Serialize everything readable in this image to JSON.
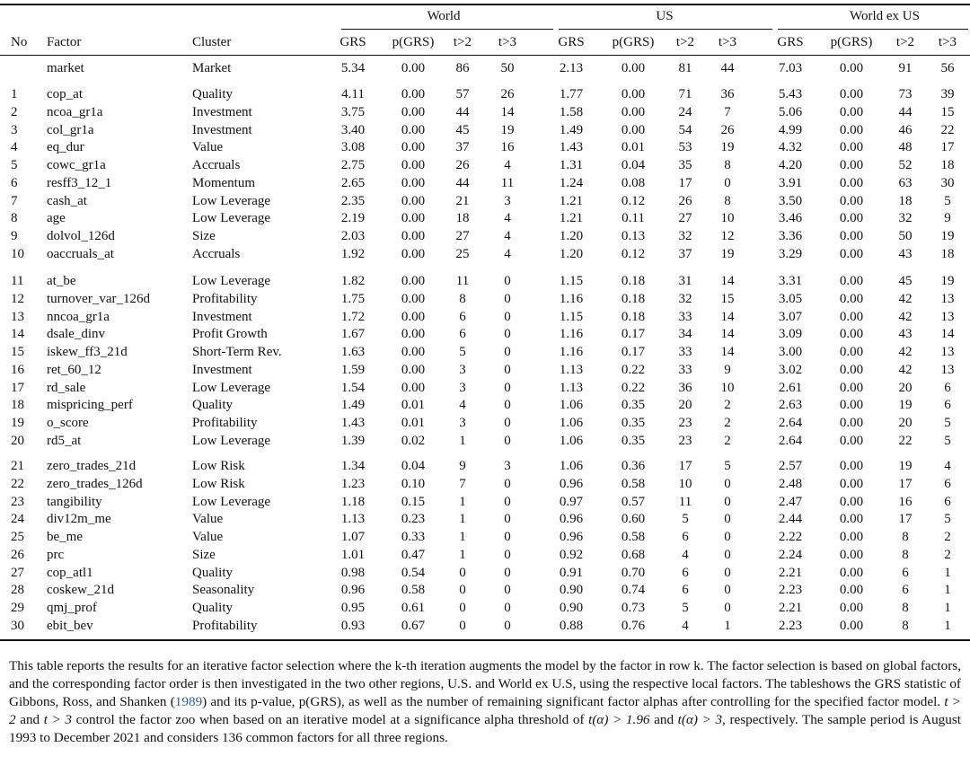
{
  "table": {
    "groups": [
      "World",
      "US",
      "World ex US"
    ],
    "columns": [
      "No",
      "Factor",
      "Cluster",
      "GRS",
      "p(GRS)",
      "t>2",
      "t>3",
      "GRS",
      "p(GRS)",
      "t>2",
      "t>3",
      "GRS",
      "p(GRS)",
      "t>2",
      "t>3"
    ],
    "body": [
      [
        [
          null,
          "market",
          "Market",
          "5.34",
          "0.00",
          "86",
          "50",
          "2.13",
          "0.00",
          "81",
          "44",
          "7.03",
          "0.00",
          "91",
          "56"
        ]
      ],
      [
        [
          "1",
          "cop_at",
          "Quality",
          "4.11",
          "0.00",
          "57",
          "26",
          "1.77",
          "0.00",
          "71",
          "36",
          "5.43",
          "0.00",
          "73",
          "39"
        ],
        [
          "2",
          "ncoa_gr1a",
          "Investment",
          "3.75",
          "0.00",
          "44",
          "14",
          "1.58",
          "0.00",
          "24",
          "7",
          "5.06",
          "0.00",
          "44",
          "15"
        ],
        [
          "3",
          "col_gr1a",
          "Investment",
          "3.40",
          "0.00",
          "45",
          "19",
          "1.49",
          "0.00",
          "54",
          "26",
          "4.99",
          "0.00",
          "46",
          "22"
        ],
        [
          "4",
          "eq_dur",
          "Value",
          "3.08",
          "0.00",
          "37",
          "16",
          "1.43",
          "0.01",
          "53",
          "19",
          "4.32",
          "0.00",
          "48",
          "17"
        ],
        [
          "5",
          "cowc_gr1a",
          "Accruals",
          "2.75",
          "0.00",
          "26",
          "4",
          "1.31",
          "0.04",
          "35",
          "8",
          "4.20",
          "0.00",
          "52",
          "18"
        ],
        [
          "6",
          "resff3_12_1",
          "Momentum",
          "2.65",
          "0.00",
          "44",
          "11",
          "1.24",
          "0.08",
          "17",
          "0",
          "3.91",
          "0.00",
          "63",
          "30"
        ],
        [
          "7",
          "cash_at",
          "Low Leverage",
          "2.35",
          "0.00",
          "21",
          "3",
          "1.21",
          "0.12",
          "26",
          "8",
          "3.50",
          "0.00",
          "18",
          "5"
        ],
        [
          "8",
          "age",
          "Low Leverage",
          "2.19",
          "0.00",
          "18",
          "4",
          "1.21",
          "0.11",
          "27",
          "10",
          "3.46",
          "0.00",
          "32",
          "9"
        ],
        [
          "9",
          "dolvol_126d",
          "Size",
          "2.03",
          "0.00",
          "27",
          "4",
          "1.20",
          "0.13",
          "32",
          "12",
          "3.36",
          "0.00",
          "50",
          "19"
        ],
        [
          "10",
          "oaccruals_at",
          "Accruals",
          "1.92",
          "0.00",
          "25",
          "4",
          "1.20",
          "0.12",
          "37",
          "19",
          "3.29",
          "0.00",
          "43",
          "18"
        ]
      ],
      [
        [
          "11",
          "at_be",
          "Low Leverage",
          "1.82",
          "0.00",
          "11",
          "0",
          "1.15",
          "0.18",
          "31",
          "14",
          "3.31",
          "0.00",
          "45",
          "19"
        ],
        [
          "12",
          "turnover_var_126d",
          "Profitability",
          "1.75",
          "0.00",
          "8",
          "0",
          "1.16",
          "0.18",
          "32",
          "15",
          "3.05",
          "0.00",
          "42",
          "13"
        ],
        [
          "13",
          "nncoa_gr1a",
          "Investment",
          "1.72",
          "0.00",
          "6",
          "0",
          "1.15",
          "0.18",
          "33",
          "14",
          "3.07",
          "0.00",
          "42",
          "13"
        ],
        [
          "14",
          "dsale_dinv",
          "Profit Growth",
          "1.67",
          "0.00",
          "6",
          "0",
          "1.16",
          "0.17",
          "34",
          "14",
          "3.09",
          "0.00",
          "43",
          "14"
        ],
        [
          "15",
          "iskew_ff3_21d",
          "Short-Term Rev.",
          "1.63",
          "0.00",
          "5",
          "0",
          "1.16",
          "0.17",
          "33",
          "14",
          "3.00",
          "0.00",
          "42",
          "13"
        ],
        [
          "16",
          "ret_60_12",
          "Investment",
          "1.59",
          "0.00",
          "3",
          "0",
          "1.13",
          "0.22",
          "33",
          "9",
          "3.02",
          "0.00",
          "42",
          "13"
        ],
        [
          "17",
          "rd_sale",
          "Low Leverage",
          "1.54",
          "0.00",
          "3",
          "0",
          "1.13",
          "0.22",
          "36",
          "10",
          "2.61",
          "0.00",
          "20",
          "6"
        ],
        [
          "18",
          "mispricing_perf",
          "Quality",
          "1.49",
          "0.01",
          "4",
          "0",
          "1.06",
          "0.35",
          "20",
          "2",
          "2.63",
          "0.00",
          "19",
          "6"
        ],
        [
          "19",
          "o_score",
          "Profitability",
          "1.43",
          "0.01",
          "3",
          "0",
          "1.06",
          "0.35",
          "23",
          "2",
          "2.64",
          "0.00",
          "20",
          "5"
        ],
        [
          "20",
          "rd5_at",
          "Low Leverage",
          "1.39",
          "0.02",
          "1",
          "0",
          "1.06",
          "0.35",
          "23",
          "2",
          "2.64",
          "0.00",
          "22",
          "5"
        ]
      ],
      [
        [
          "21",
          "zero_trades_21d",
          "Low Risk",
          "1.34",
          "0.04",
          "9",
          "3",
          "1.06",
          "0.36",
          "17",
          "5",
          "2.57",
          "0.00",
          "19",
          "4"
        ],
        [
          "22",
          "zero_trades_126d",
          "Low Risk",
          "1.23",
          "0.10",
          "7",
          "0",
          "0.96",
          "0.58",
          "10",
          "0",
          "2.48",
          "0.00",
          "17",
          "6"
        ],
        [
          "23",
          "tangibility",
          "Low Leverage",
          "1.18",
          "0.15",
          "1",
          "0",
          "0.97",
          "0.57",
          "11",
          "0",
          "2.47",
          "0.00",
          "16",
          "6"
        ],
        [
          "24",
          "div12m_me",
          "Value",
          "1.13",
          "0.23",
          "1",
          "0",
          "0.96",
          "0.60",
          "5",
          "0",
          "2.44",
          "0.00",
          "17",
          "5"
        ],
        [
          "25",
          "be_me",
          "Value",
          "1.07",
          "0.33",
          "1",
          "0",
          "0.96",
          "0.58",
          "6",
          "0",
          "2.22",
          "0.00",
          "8",
          "2"
        ],
        [
          "26",
          "prc",
          "Size",
          "1.01",
          "0.47",
          "1",
          "0",
          "0.92",
          "0.68",
          "4",
          "0",
          "2.24",
          "0.00",
          "8",
          "2"
        ],
        [
          "27",
          "cop_atl1",
          "Quality",
          "0.98",
          "0.54",
          "0",
          "0",
          "0.91",
          "0.70",
          "6",
          "0",
          "2.21",
          "0.00",
          "6",
          "1"
        ],
        [
          "28",
          "coskew_21d",
          "Seasonality",
          "0.96",
          "0.58",
          "0",
          "0",
          "0.90",
          "0.74",
          "6",
          "0",
          "2.23",
          "0.00",
          "6",
          "1"
        ],
        [
          "29",
          "qmj_prof",
          "Quality",
          "0.95",
          "0.61",
          "0",
          "0",
          "0.90",
          "0.73",
          "5",
          "0",
          "2.21",
          "0.00",
          "8",
          "1"
        ],
        [
          "30",
          "ebit_bev",
          "Profitability",
          "0.93",
          "0.67",
          "0",
          "0",
          "0.88",
          "0.76",
          "4",
          "1",
          "2.23",
          "0.00",
          "8",
          "1"
        ]
      ]
    ]
  },
  "caption": [
    {
      "text": "This table reports the results for an iterative factor selection where the k-th iteration augments the model by the factor in row k. The factor selection is based on global factors, and the corresponding factor order is then investigated in the two other regions, U.S. and World ex U.S, using the respective local factors. The tableshows the GRS statistic of Gibbons, Ross, and Shanken ("
    },
    {
      "text": "1989",
      "style": "link"
    },
    {
      "text": ") and its p-value, p(GRS), as well as the number of remaining significant factor alphas after controlling for the specified factor model. "
    },
    {
      "text": "t > 2",
      "style": "math"
    },
    {
      "text": " and "
    },
    {
      "text": "t > 3",
      "style": "math"
    },
    {
      "text": " control the factor zoo when based on an iterative model at a significance alpha threshold of "
    },
    {
      "text": "t(α) > 1.96",
      "style": "math"
    },
    {
      "text": " and "
    },
    {
      "text": "t(α) > 3",
      "style": "math"
    },
    {
      "text": ", respectively. The sample period is August 1993 to December 2021 and considers 136 common factors for all three regions."
    }
  ]
}
